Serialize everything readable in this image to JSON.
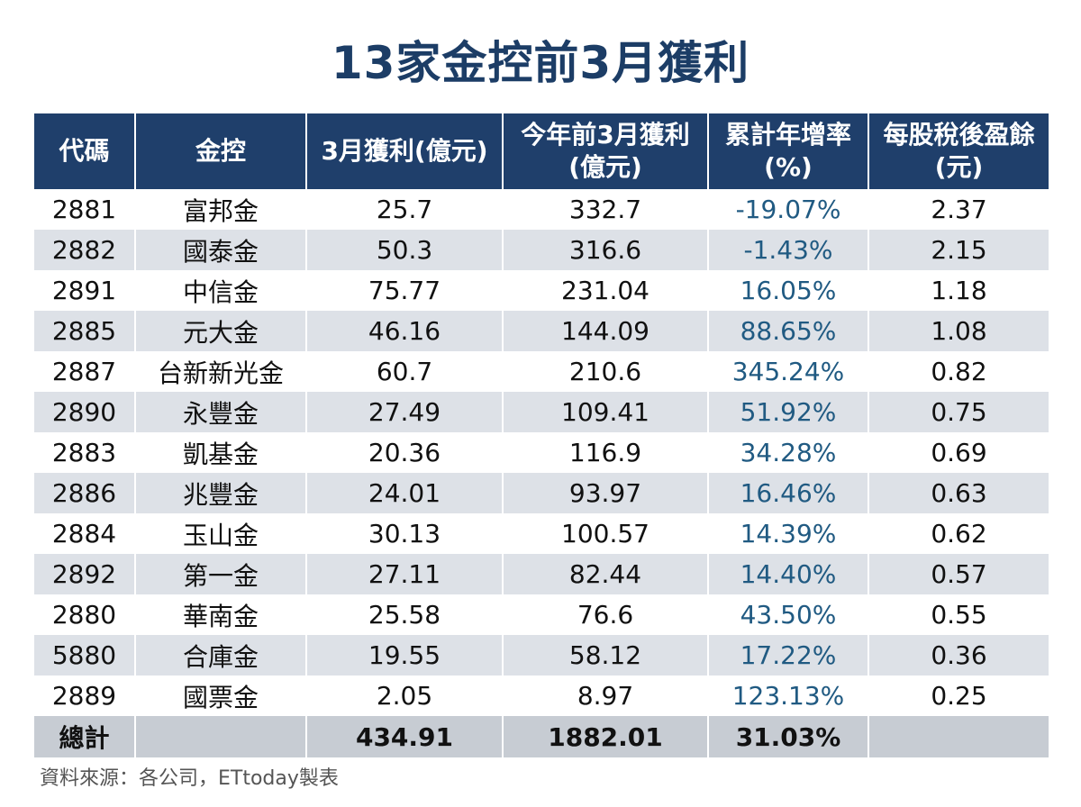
{
  "title": "13家金控前3月獲利",
  "columns": [
    {
      "label": "代碼"
    },
    {
      "label": "金控"
    },
    {
      "label": "3月獲利(億元)"
    },
    {
      "label": "今年前3月獲利",
      "label2": "(億元)"
    },
    {
      "label": "累計年增率",
      "label2": "(%)"
    },
    {
      "label": "每股稅後盈餘",
      "label2": "(元)"
    }
  ],
  "rows": [
    {
      "code": "2881",
      "name": "富邦金",
      "march": "25.7",
      "ytd": "332.7",
      "yoy": "-19.07%",
      "eps": "2.37"
    },
    {
      "code": "2882",
      "name": "國泰金",
      "march": "50.3",
      "ytd": "316.6",
      "yoy": "-1.43%",
      "eps": "2.15"
    },
    {
      "code": "2891",
      "name": "中信金",
      "march": "75.77",
      "ytd": "231.04",
      "yoy": "16.05%",
      "eps": "1.18"
    },
    {
      "code": "2885",
      "name": "元大金",
      "march": "46.16",
      "ytd": "144.09",
      "yoy": "88.65%",
      "eps": "1.08"
    },
    {
      "code": "2887",
      "name": "台新新光金",
      "march": "60.7",
      "ytd": "210.6",
      "yoy": "345.24%",
      "eps": "0.82"
    },
    {
      "code": "2890",
      "name": "永豐金",
      "march": "27.49",
      "ytd": "109.41",
      "yoy": "51.92%",
      "eps": "0.75"
    },
    {
      "code": "2883",
      "name": "凱基金",
      "march": "20.36",
      "ytd": "116.9",
      "yoy": "34.28%",
      "eps": "0.69"
    },
    {
      "code": "2886",
      "name": "兆豐金",
      "march": "24.01",
      "ytd": "93.97",
      "yoy": "16.46%",
      "eps": "0.63"
    },
    {
      "code": "2884",
      "name": "玉山金",
      "march": "30.13",
      "ytd": "100.57",
      "yoy": "14.39%",
      "eps": "0.62"
    },
    {
      "code": "2892",
      "name": "第一金",
      "march": "27.11",
      "ytd": "82.44",
      "yoy": "14.40%",
      "eps": "0.57"
    },
    {
      "code": "2880",
      "name": "華南金",
      "march": "25.58",
      "ytd": "76.6",
      "yoy": "43.50%",
      "eps": "0.55"
    },
    {
      "code": "5880",
      "name": "合庫金",
      "march": "19.55",
      "ytd": "58.12",
      "yoy": "17.22%",
      "eps": "0.36"
    },
    {
      "code": "2889",
      "name": "國票金",
      "march": "2.05",
      "ytd": "8.97",
      "yoy": "123.13%",
      "eps": "0.25"
    }
  ],
  "total": {
    "label": "總計",
    "march": "434.91",
    "ytd": "1882.01",
    "yoy": "31.03%"
  },
  "source": "資料來源：各公司，ETtoday製表",
  "colors": {
    "header_bg": "#1f3f6b",
    "stripe": "#dde1e7",
    "total_bg": "#c7ccd3",
    "yoy_text": "#205a82",
    "title": "#1c3d66"
  }
}
